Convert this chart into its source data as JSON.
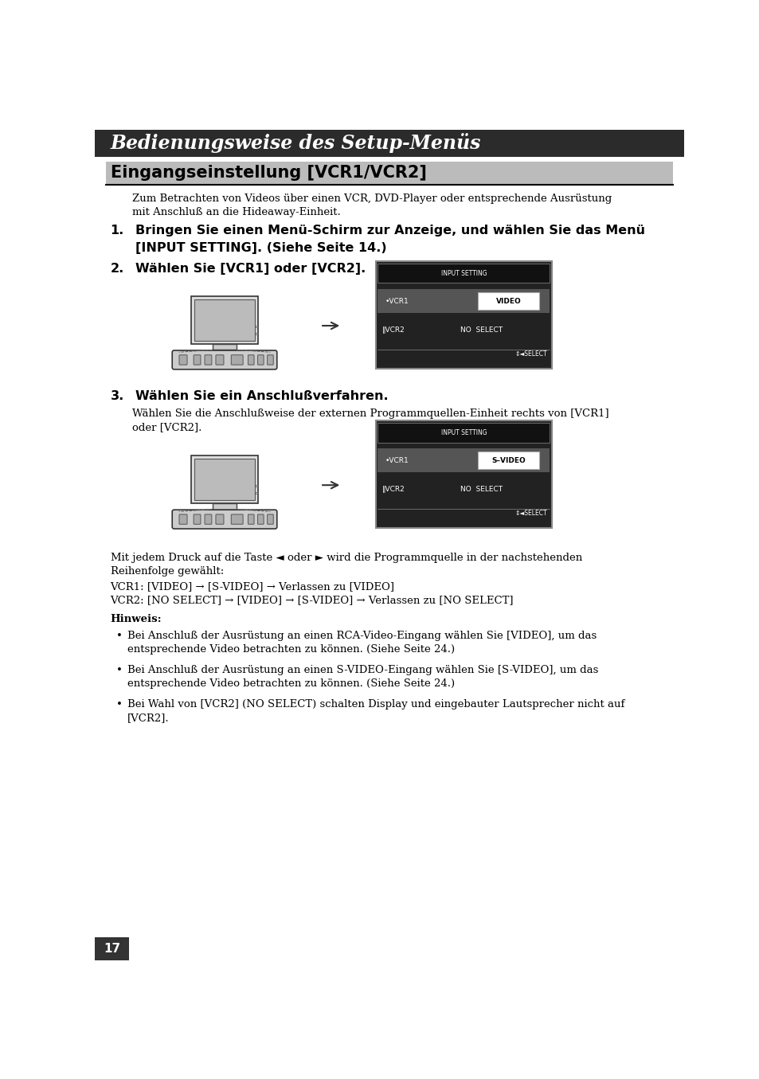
{
  "page_bg": "#ffffff",
  "header_bg": "#2b2b2b",
  "header_text": "Bedienungsweise des Setup-Menüs",
  "header_text_color": "#ffffff",
  "section_title": "Eingangseinstellung [VCR1/VCR2]",
  "section_title_bg": "#bbbbbb",
  "section_title_color": "#000000",
  "page_number": "17",
  "body1_line1": "Zum Betrachten von Videos über einen VCR, DVD-Player oder entsprechende Ausrüstung",
  "body1_line2": "mit Anschluß an die Hideaway-Einheit.",
  "step1_num": "1.",
  "step1_line1": "Bringen Sie einen Menü-Schirm zur Anzeige, und wählen Sie das Menü",
  "step1_line2": "[INPUT SETTING]. (Siehe Seite 14.)",
  "step2_num": "2.",
  "step2_text": "Wählen Sie [VCR1] oder [VCR2].",
  "step3_num": "3.",
  "step3_text": "Wählen Sie ein Anschlußverfahren.",
  "step3_body1": "Wählen Sie die Anschlußweise der externen Programmquellen-Einheit rechts von [VCR1]",
  "step3_body2": "oder [VCR2].",
  "after_text1": "Mit jedem Druck auf die Taste ◄ oder ► wird die Programmquelle in der nachstehenden",
  "after_text2": "Reihenfolge gewählt:",
  "after_text3": "VCR1: [VIDEO] → [S-VIDEO] → Verlassen zu [VIDEO]",
  "after_text4": "VCR2: [NO SELECT] → [VIDEO] → [S-VIDEO] → Verlassen zu [NO SELECT]",
  "note_title": "Hinweis:",
  "bullet1_l1": "Bei Anschluß der Ausrüstung an einen RCA-Video-Eingang wählen Sie [VIDEO], um das",
  "bullet1_l2": "entsprechende Video betrachten zu können. (Siehe Seite 24.)",
  "bullet2_l1": "Bei Anschluß der Ausrüstung an einen S-VIDEO-Eingang wählen Sie [S-VIDEO], um das",
  "bullet2_l2": "entsprechende Video betrachten zu können. (Siehe Seite 24.)",
  "bullet3_l1": "Bei Wahl von [VCR2] (NO SELECT) schalten Display und eingebauter Lautsprecher nicht auf",
  "bullet3_l2": "[VCR2].",
  "screen1_vcr1_label": "VIDEO",
  "screen1_vcr2_label": "NO  SELECT",
  "screen2_vcr1_label": "S–VIDEO",
  "screen2_vcr2_label": "NO  SELECT"
}
